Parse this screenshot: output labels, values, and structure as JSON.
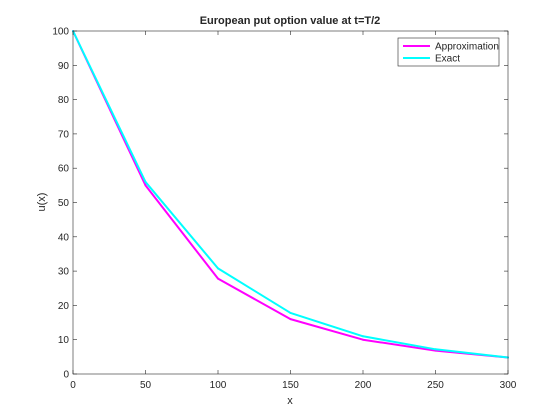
{
  "chart_data": {
    "type": "line",
    "title": "European put option value at t=T/2",
    "xlabel": "x",
    "ylabel": "u(x)",
    "xlim": [
      0,
      300
    ],
    "ylim": [
      0,
      100
    ],
    "xticks": [
      0,
      50,
      100,
      150,
      200,
      250,
      300
    ],
    "yticks": [
      0,
      10,
      20,
      30,
      40,
      50,
      60,
      70,
      80,
      90,
      100
    ],
    "grid": false,
    "legend_position": "top-right",
    "series": [
      {
        "name": "Approximation",
        "color": "#ff00ff",
        "x": [
          0,
          50,
          100,
          150,
          200,
          250,
          300
        ],
        "y": [
          100,
          55,
          27.8,
          16,
          10,
          6.8,
          4.8
        ]
      },
      {
        "name": "Exact",
        "color": "#00ffff",
        "x": [
          0,
          50,
          100,
          150,
          200,
          250,
          300
        ],
        "y": [
          100,
          56,
          30.8,
          17.8,
          11,
          7.2,
          4.8
        ]
      }
    ]
  }
}
